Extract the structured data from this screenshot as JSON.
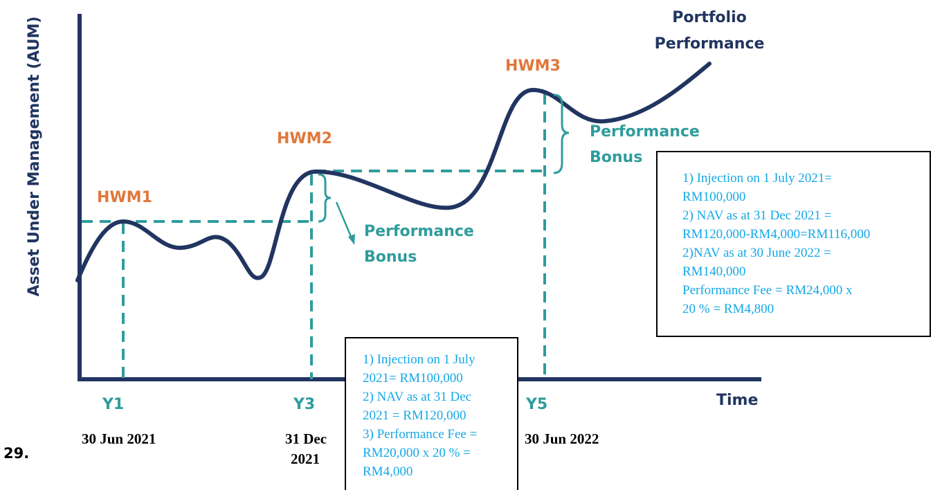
{
  "diagram": {
    "y_axis_label": "Asset Under Management (AUM)",
    "x_axis_label": "Time",
    "curve_label": [
      "Portfolio",
      "Performance"
    ],
    "hwm": [
      "HWM1",
      "HWM2",
      "HWM3"
    ],
    "bonus_1": [
      "Performance",
      "Bonus"
    ],
    "bonus_2": [
      "Performance",
      "Bonus"
    ],
    "periods": [
      "Y1",
      "Y3",
      "Y5"
    ],
    "dates": [
      "30 Jun 2021",
      "31 Dec",
      "2021",
      "30 Jun 2022"
    ],
    "item_number": "29.",
    "box_1": [
      "1) Injection on 1 July",
      "2021= RM100,000",
      "2) NAV as at 31 Dec",
      "2021 = RM120,000",
      "3) Performance Fee =",
      "RM20,000 x 20 % =",
      "RM4,000"
    ],
    "box_2": [
      "1) Injection on 1 July 2021=",
      "RM100,000",
      "2) NAV as at 31 Dec 2021 =",
      "RM120,000-RM4,000=RM116,000",
      "2)NAV as at 30 June 2022 =",
      "RM140,000",
      "Performance Fee = RM24,000 x",
      "20 % = RM4,800"
    ]
  }
}
